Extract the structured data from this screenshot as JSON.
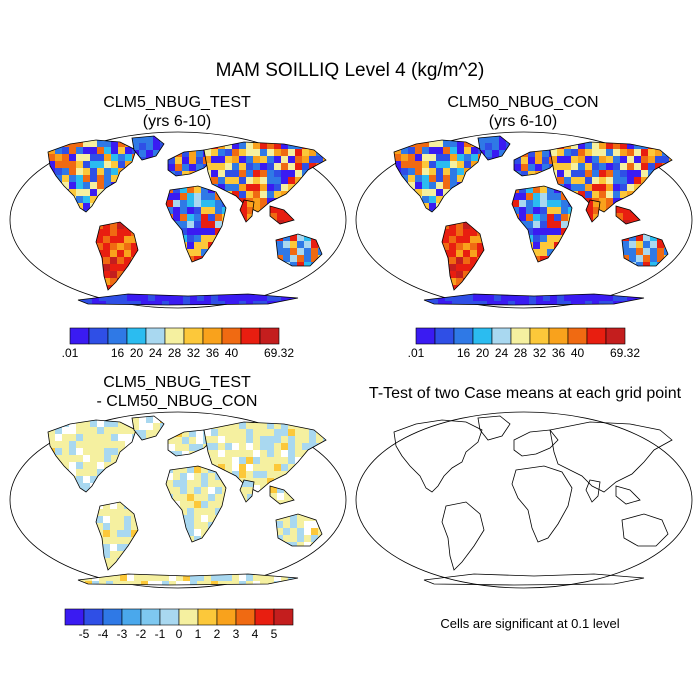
{
  "figure": {
    "title": "MAM SOILLIQ Level 4 (kg/m^2)"
  },
  "panels": [
    {
      "id": "test",
      "title_line1": "CLM5_NBUG_TEST",
      "title_line2": "(yrs 6-10)"
    },
    {
      "id": "control",
      "title_line1": "CLM50_NBUG_CON",
      "title_line2": "(yrs 6-10)"
    },
    {
      "id": "difference",
      "title_line1": "CLM5_NBUG_TEST",
      "title_line2": "- CLM50_NBUG_CON"
    },
    {
      "id": "ttest",
      "title_line1": "T-Test of two Case means at each grid point",
      "title_line2": ""
    }
  ],
  "colorbars": {
    "absolute": {
      "colors": [
        "#3a1bf2",
        "#2f4fe6",
        "#2f79e6",
        "#2bbcf0",
        "#a9d8f0",
        "#f5f0a0",
        "#fcc83a",
        "#f9a21c",
        "#f06a12",
        "#e81e10",
        "#c41e1e"
      ],
      "labels": [
        ".01",
        "",
        "16",
        "20",
        "24",
        "28",
        "32",
        "36",
        "40",
        "",
        "69.32"
      ]
    },
    "difference": {
      "colors": [
        "#3a1bf2",
        "#2f4fe6",
        "#2f79e6",
        "#4aa8ec",
        "#7ec8f0",
        "#a9d8f0",
        "#f5f0a0",
        "#fcc83a",
        "#f9a21c",
        "#f06a12",
        "#e81e10",
        "#c41e1e"
      ],
      "labels": [
        "-5",
        "-4",
        "-3",
        "-2",
        "-1",
        "0",
        "1",
        "2",
        "3",
        "4",
        "5"
      ]
    }
  },
  "significance_note": "Cells are significant at 0.1 level"
}
